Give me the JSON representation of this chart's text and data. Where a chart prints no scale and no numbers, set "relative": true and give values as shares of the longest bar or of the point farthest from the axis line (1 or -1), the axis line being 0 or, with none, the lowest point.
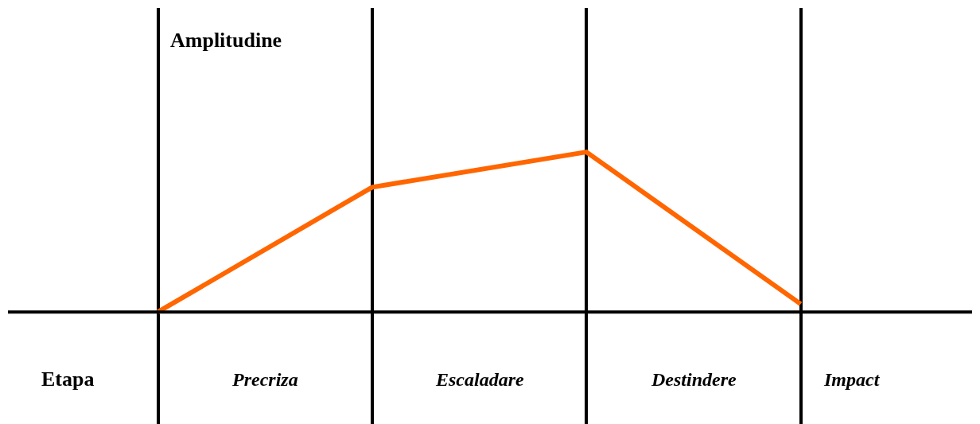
{
  "chart_data": {
    "type": "line",
    "relative": true,
    "xlabel": "Etapa",
    "ylabel": "Amplitudine",
    "categories": [
      null,
      null,
      null,
      null
    ],
    "series": [
      {
        "color": "#ff6600",
        "values": [
          0,
          0.78,
          1,
          0.05
        ]
      }
    ],
    "annotations": [
      "Precriza",
      "Escaladare",
      "Destindere",
      "Impact"
    ],
    "grid": "x",
    "marker": "none",
    "line_style": "solid"
  }
}
